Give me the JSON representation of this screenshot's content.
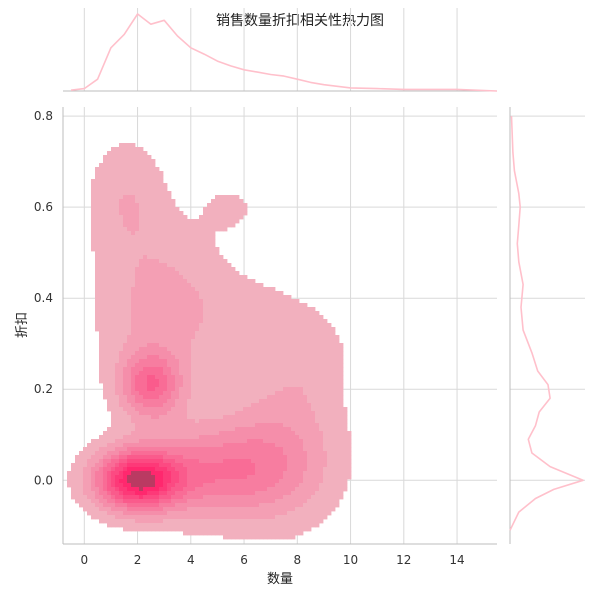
{
  "chart_data": {
    "type": "heatmap",
    "subtype": "joint-kde",
    "title": "销售数量折扣相关性热力图",
    "xlabel": "数量",
    "ylabel": "折扣",
    "xlim": [
      -0.8,
      15.5
    ],
    "ylim": [
      -0.14,
      0.82
    ],
    "x_ticks": [
      0,
      2,
      4,
      6,
      8,
      10,
      12,
      14
    ],
    "y_ticks": [
      0.0,
      0.2,
      0.4,
      0.6,
      0.8
    ],
    "grid": true,
    "colors": {
      "main": "#ff1f6e",
      "marginal_line": "#ffc0cb",
      "grid": "#d9d9d9",
      "axis": "#bdbdbd"
    },
    "kde_levels": 10,
    "kde_components": [
      {
        "x": 2.0,
        "y": 0.0,
        "weight": 1.0,
        "sx": 1.1,
        "sy": 0.045
      },
      {
        "x": 2.5,
        "y": 0.21,
        "weight": 0.55,
        "sx": 0.8,
        "sy": 0.05
      },
      {
        "x": 5.0,
        "y": 0.02,
        "weight": 0.45,
        "sx": 2.0,
        "sy": 0.07
      },
      {
        "x": 7.5,
        "y": 0.08,
        "weight": 0.22,
        "sx": 1.5,
        "sy": 0.12
      },
      {
        "x": 1.6,
        "y": 0.62,
        "weight": 0.16,
        "sx": 1.0,
        "sy": 0.09
      },
      {
        "x": 5.5,
        "y": 0.6,
        "weight": 0.08,
        "sx": 0.8,
        "sy": 0.04
      },
      {
        "x": 3.0,
        "y": 0.38,
        "weight": 0.22,
        "sx": 1.7,
        "sy": 0.12
      },
      {
        "x": 8.5,
        "y": 0.28,
        "weight": 0.1,
        "sx": 1.0,
        "sy": 0.07
      },
      {
        "x": 6.5,
        "y": 0.36,
        "weight": 0.09,
        "sx": 1.3,
        "sy": 0.06
      }
    ],
    "marginal_x": [
      [
        -0.5,
        0.01
      ],
      [
        0,
        0.03
      ],
      [
        0.5,
        0.15
      ],
      [
        1,
        0.55
      ],
      [
        1.5,
        0.72
      ],
      [
        2,
        0.98
      ],
      [
        2.5,
        0.85
      ],
      [
        3,
        0.9
      ],
      [
        3.5,
        0.7
      ],
      [
        4,
        0.55
      ],
      [
        4.5,
        0.47
      ],
      [
        5,
        0.38
      ],
      [
        5.5,
        0.32
      ],
      [
        6,
        0.27
      ],
      [
        6.5,
        0.24
      ],
      [
        7,
        0.21
      ],
      [
        7.5,
        0.19
      ],
      [
        8,
        0.15
      ],
      [
        8.5,
        0.11
      ],
      [
        9,
        0.08
      ],
      [
        10,
        0.04
      ],
      [
        11,
        0.03
      ],
      [
        12,
        0.02
      ],
      [
        13,
        0.02
      ],
      [
        14,
        0.02
      ],
      [
        15.5,
        0.0
      ]
    ],
    "marginal_y": [
      [
        -0.11,
        0.0
      ],
      [
        -0.07,
        0.12
      ],
      [
        -0.04,
        0.35
      ],
      [
        -0.02,
        0.6
      ],
      [
        0.0,
        1.0
      ],
      [
        0.03,
        0.55
      ],
      [
        0.06,
        0.3
      ],
      [
        0.09,
        0.25
      ],
      [
        0.12,
        0.35
      ],
      [
        0.15,
        0.4
      ],
      [
        0.18,
        0.55
      ],
      [
        0.21,
        0.52
      ],
      [
        0.24,
        0.38
      ],
      [
        0.28,
        0.3
      ],
      [
        0.33,
        0.18
      ],
      [
        0.38,
        0.15
      ],
      [
        0.43,
        0.18
      ],
      [
        0.48,
        0.12
      ],
      [
        0.52,
        0.1
      ],
      [
        0.56,
        0.12
      ],
      [
        0.6,
        0.14
      ],
      [
        0.63,
        0.12
      ],
      [
        0.68,
        0.06
      ],
      [
        0.72,
        0.04
      ],
      [
        0.8,
        0.02
      ]
    ]
  }
}
